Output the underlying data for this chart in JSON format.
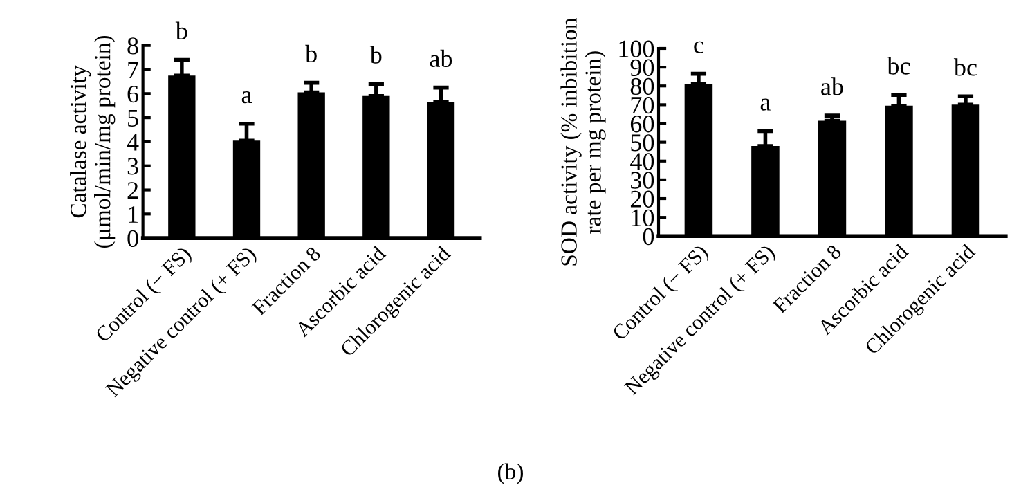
{
  "chart_data": [
    {
      "type": "bar",
      "ylabel": "Catalase activity (µmol/min/mg protein)",
      "categories": [
        "Control (− FS)",
        "Negative control (+ FS)",
        "Fraction 8",
        "Ascorbic acid",
        "Chlorogenic acid"
      ],
      "series": [
        {
          "color": "#000000",
          "values": [
            6.75,
            4.05,
            6.05,
            5.9,
            5.65
          ],
          "errors": [
            0.65,
            0.7,
            0.4,
            0.5,
            0.6
          ]
        }
      ],
      "ylim": [
        0,
        8
      ],
      "yticks": [
        0,
        1,
        2,
        3,
        4,
        5,
        6,
        7,
        8
      ],
      "grid": false,
      "legend": false,
      "annotations": [
        "b",
        "a",
        "b",
        "b",
        "ab"
      ]
    },
    {
      "type": "bar",
      "ylabel": "SOD activity (% inbibition rate per mg protein)",
      "categories": [
        "Control (− FS)",
        "Negative control (+ FS)",
        "Fraction 8",
        "Ascorbic acid",
        "Chlorogenic acid"
      ],
      "series": [
        {
          "color": "#000000",
          "values": [
            81,
            48,
            61.5,
            69.5,
            70
          ],
          "errors": [
            5.5,
            8,
            2.7,
            5.7,
            4.5
          ]
        }
      ],
      "ylim": [
        0,
        100
      ],
      "yticks": [
        0,
        10,
        20,
        30,
        40,
        50,
        60,
        70,
        80,
        90,
        100
      ],
      "grid": false,
      "legend": false,
      "annotations": [
        "c",
        "a",
        "ab",
        "bc",
        "bc",
        "(b)"
      ]
    }
  ]
}
